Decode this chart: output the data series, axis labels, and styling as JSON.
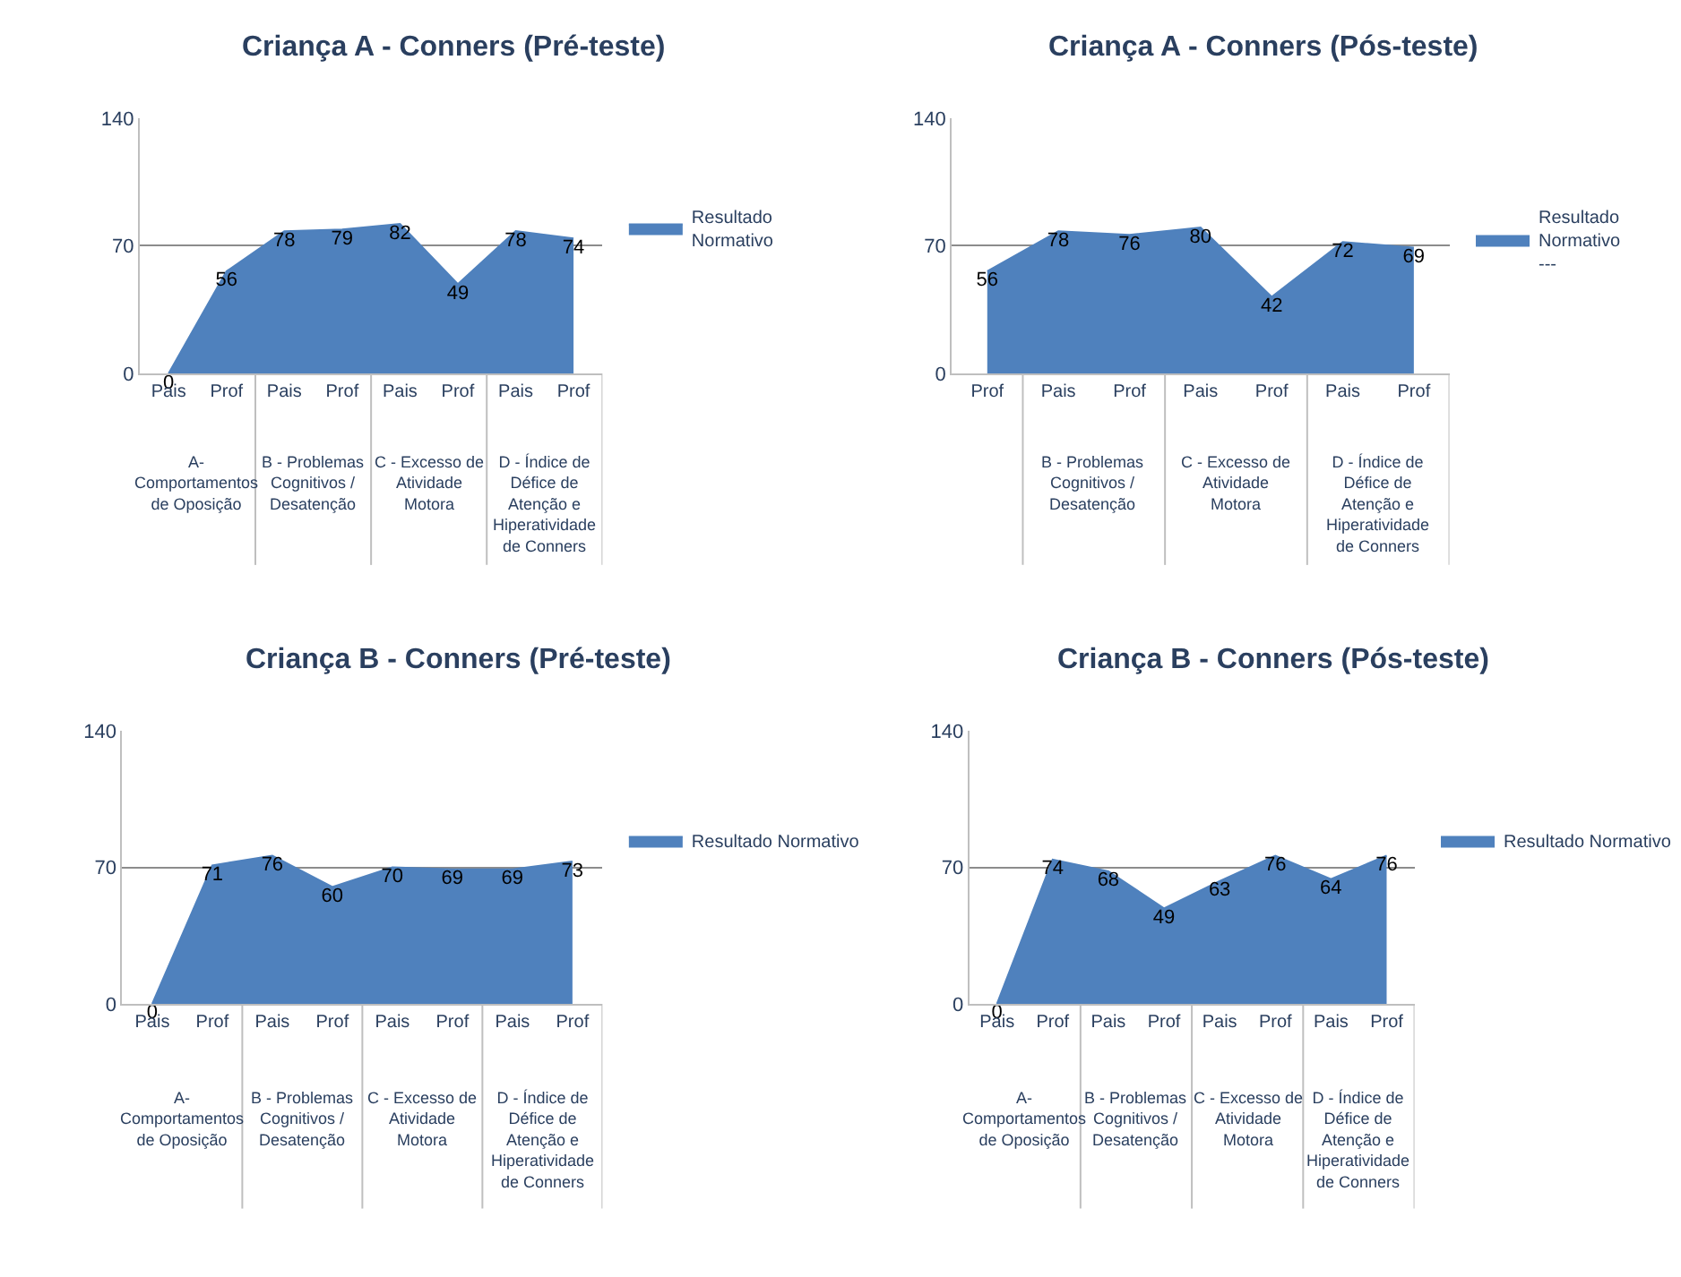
{
  "chart_data": [
    {
      "type": "area",
      "title": "Criança A - Conners (Pré-teste)",
      "categories": [
        "Pais",
        "Prof",
        "Pais",
        "Prof",
        "Pais",
        "Prof",
        "Pais",
        "Prof"
      ],
      "series": [
        {
          "name": "Resultado Normativo",
          "color": "#4f81bd",
          "values": [
            0,
            56,
            78,
            79,
            82,
            49,
            78,
            74
          ]
        }
      ],
      "annotations": [
        "A- Comportamentos de Oposição",
        "B - Problemas Cognitivos / Desatenção",
        "C - Excesso de Atividade Motora",
        "D - Índice de Défice de Atenção e Hiperatividade de Conners"
      ],
      "ylim": [
        0,
        140
      ],
      "yticks": [
        0,
        70,
        140
      ],
      "grid": "y",
      "legend": "right",
      "data_labels": true
    },
    {
      "type": "area",
      "title": "Criança A - Conners (Pós-teste)",
      "categories": [
        "Prof",
        "Pais",
        "Prof",
        "Pais",
        "Prof",
        "Pais",
        "Prof"
      ],
      "series": [
        {
          "name": "Resultado Normativo\n---",
          "color": "#4f81bd",
          "values": [
            56,
            78,
            76,
            80,
            42,
            72,
            69
          ]
        }
      ],
      "annotations": [
        "B - Problemas Cognitivos / Desatenção",
        "C - Excesso de Atividade Motora",
        "D - Índice de Défice de Atenção e Hiperatividade de Conners"
      ],
      "ylim": [
        0,
        140
      ],
      "yticks": [
        0,
        70,
        140
      ],
      "grid": "y",
      "legend": "right",
      "data_labels": true
    },
    {
      "type": "area",
      "title": "Criança B - Conners (Pré-teste)",
      "categories": [
        "Pais",
        "Prof",
        "Pais",
        "Prof",
        "Pais",
        "Prof",
        "Pais",
        "Prof"
      ],
      "series": [
        {
          "name": "Resultado Normativo",
          "color": "#4f81bd",
          "values": [
            0,
            71,
            76,
            60,
            70,
            69,
            69,
            73
          ]
        }
      ],
      "annotations": [
        "A- Comportamentos de Oposição",
        "B - Problemas Cognitivos / Desatenção",
        "C - Excesso de Atividade Motora",
        "D - Índice de Défice de Atenção e Hiperatividade de Conners"
      ],
      "ylim": [
        0,
        140
      ],
      "yticks": [
        0,
        70,
        140
      ],
      "grid": "y",
      "legend": "right",
      "data_labels": true
    },
    {
      "type": "area",
      "title": "Criança B - Conners (Pós-teste)",
      "categories": [
        "Pais",
        "Prof",
        "Pais",
        "Prof",
        "Pais",
        "Prof",
        "Pais",
        "Prof"
      ],
      "series": [
        {
          "name": "Resultado Normativo",
          "color": "#4f81bd",
          "values": [
            0,
            74,
            68,
            49,
            63,
            76,
            64,
            76
          ]
        }
      ],
      "annotations": [
        "A- Comportamentos de Oposição",
        "B - Problemas Cognitivos / Desatenção",
        "C - Excesso de Atividade Motora",
        "D - Índice de Défice de Atenção e Hiperatividade de Conners"
      ],
      "ylim": [
        0,
        140
      ],
      "yticks": [
        0,
        70,
        140
      ],
      "grid": "y",
      "legend": "right",
      "data_labels": true
    }
  ]
}
